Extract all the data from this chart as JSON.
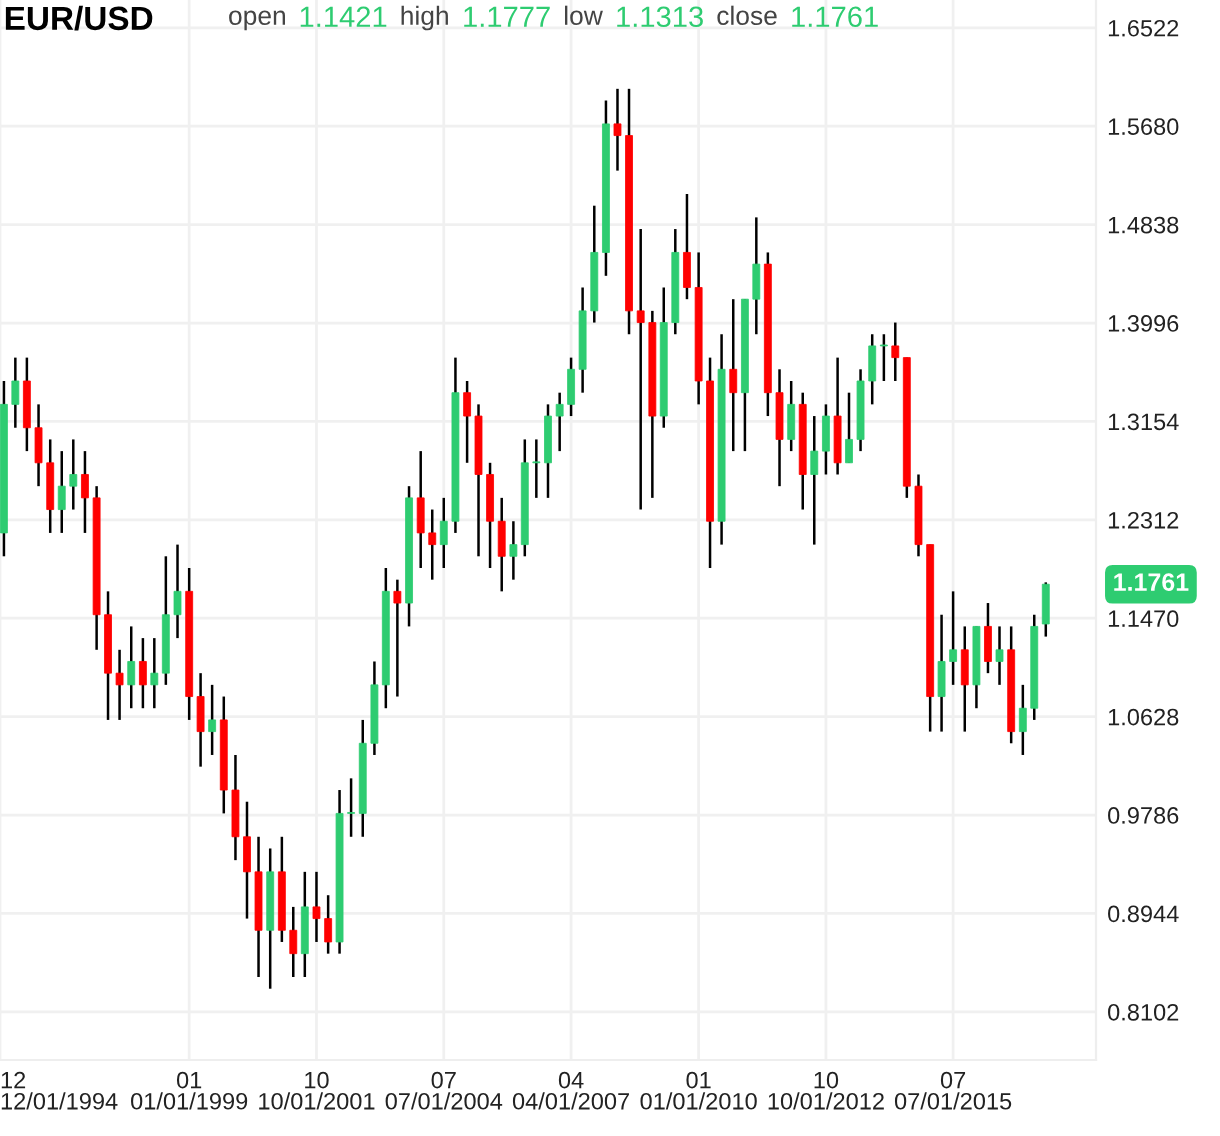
{
  "chart_data": {
    "type": "candlestick",
    "title": "EUR/USD",
    "annotations": [
      "open",
      "1.1421",
      "high",
      "1.1777",
      "low",
      "1.1313",
      "close",
      "1.1761",
      "1.1761"
    ],
    "x": [
      "1995-01",
      "1995-04",
      "1995-07",
      "1995-10",
      "1996-01",
      "1996-04",
      "1996-07",
      "1996-10",
      "1997-01",
      "1997-04",
      "1997-07",
      "1997-10",
      "1998-01",
      "1998-04",
      "1998-07",
      "1998-10",
      "1999-01",
      "1999-04",
      "1999-07",
      "1999-10",
      "2000-01",
      "2000-04",
      "2000-07",
      "2000-10",
      "2001-01",
      "2001-04",
      "2001-07",
      "2001-10",
      "2002-01",
      "2002-04",
      "2002-07",
      "2002-10",
      "2003-01",
      "2003-04",
      "2003-07",
      "2003-10",
      "2004-01",
      "2004-04",
      "2004-07",
      "2004-10",
      "2005-01",
      "2005-04",
      "2005-07",
      "2005-10",
      "2006-01",
      "2006-04",
      "2006-07",
      "2006-10",
      "2007-01",
      "2007-04",
      "2007-07",
      "2007-10",
      "2008-01",
      "2008-04",
      "2008-07",
      "2008-10",
      "2009-01",
      "2009-04",
      "2009-07",
      "2009-10",
      "2010-01",
      "2010-04",
      "2010-07",
      "2010-10",
      "2011-01",
      "2011-04",
      "2011-07",
      "2011-10",
      "2012-01",
      "2012-04",
      "2012-07",
      "2012-10",
      "2013-01",
      "2013-04",
      "2013-07",
      "2013-10",
      "2014-01",
      "2014-04",
      "2014-07",
      "2014-10",
      "2015-01",
      "2015-04",
      "2015-07",
      "2015-10",
      "2016-01",
      "2016-04",
      "2016-07",
      "2016-10",
      "2017-01",
      "2017-04",
      "2017-07"
    ],
    "ohlc": [
      [
        1.22,
        1.35,
        1.2,
        1.33
      ],
      [
        1.33,
        1.37,
        1.31,
        1.35
      ],
      [
        1.35,
        1.37,
        1.29,
        1.31
      ],
      [
        1.31,
        1.33,
        1.26,
        1.28
      ],
      [
        1.28,
        1.3,
        1.22,
        1.24
      ],
      [
        1.24,
        1.29,
        1.22,
        1.26
      ],
      [
        1.26,
        1.3,
        1.24,
        1.27
      ],
      [
        1.27,
        1.29,
        1.22,
        1.25
      ],
      [
        1.25,
        1.26,
        1.12,
        1.15
      ],
      [
        1.15,
        1.17,
        1.06,
        1.1
      ],
      [
        1.1,
        1.12,
        1.06,
        1.09
      ],
      [
        1.09,
        1.14,
        1.07,
        1.11
      ],
      [
        1.11,
        1.13,
        1.07,
        1.09
      ],
      [
        1.09,
        1.13,
        1.07,
        1.1
      ],
      [
        1.1,
        1.2,
        1.09,
        1.15
      ],
      [
        1.15,
        1.21,
        1.13,
        1.17
      ],
      [
        1.17,
        1.19,
        1.06,
        1.08
      ],
      [
        1.08,
        1.1,
        1.02,
        1.05
      ],
      [
        1.05,
        1.09,
        1.03,
        1.06
      ],
      [
        1.06,
        1.08,
        0.98,
        1.0
      ],
      [
        1.0,
        1.03,
        0.94,
        0.96
      ],
      [
        0.96,
        0.99,
        0.89,
        0.93
      ],
      [
        0.93,
        0.96,
        0.84,
        0.88
      ],
      [
        0.88,
        0.95,
        0.83,
        0.93
      ],
      [
        0.93,
        0.96,
        0.87,
        0.88
      ],
      [
        0.88,
        0.9,
        0.84,
        0.86
      ],
      [
        0.86,
        0.93,
        0.84,
        0.9
      ],
      [
        0.9,
        0.93,
        0.87,
        0.89
      ],
      [
        0.89,
        0.91,
        0.86,
        0.87
      ],
      [
        0.87,
        1.0,
        0.86,
        0.98
      ],
      [
        0.98,
        1.01,
        0.96,
        0.98
      ],
      [
        0.98,
        1.06,
        0.96,
        1.04
      ],
      [
        1.04,
        1.11,
        1.03,
        1.09
      ],
      [
        1.09,
        1.19,
        1.07,
        1.17
      ],
      [
        1.17,
        1.18,
        1.08,
        1.16
      ],
      [
        1.16,
        1.26,
        1.14,
        1.25
      ],
      [
        1.25,
        1.29,
        1.19,
        1.22
      ],
      [
        1.22,
        1.24,
        1.18,
        1.21
      ],
      [
        1.21,
        1.25,
        1.19,
        1.23
      ],
      [
        1.23,
        1.37,
        1.22,
        1.34
      ],
      [
        1.34,
        1.35,
        1.28,
        1.32
      ],
      [
        1.32,
        1.33,
        1.2,
        1.27
      ],
      [
        1.27,
        1.28,
        1.19,
        1.23
      ],
      [
        1.23,
        1.25,
        1.17,
        1.2
      ],
      [
        1.2,
        1.23,
        1.18,
        1.21
      ],
      [
        1.21,
        1.3,
        1.2,
        1.28
      ],
      [
        1.28,
        1.3,
        1.25,
        1.28
      ],
      [
        1.28,
        1.33,
        1.25,
        1.32
      ],
      [
        1.32,
        1.34,
        1.29,
        1.33
      ],
      [
        1.33,
        1.37,
        1.32,
        1.36
      ],
      [
        1.36,
        1.43,
        1.34,
        1.41
      ],
      [
        1.41,
        1.5,
        1.4,
        1.46
      ],
      [
        1.46,
        1.59,
        1.44,
        1.57
      ],
      [
        1.57,
        1.6,
        1.53,
        1.56
      ],
      [
        1.56,
        1.6,
        1.39,
        1.41
      ],
      [
        1.41,
        1.48,
        1.24,
        1.4
      ],
      [
        1.4,
        1.41,
        1.25,
        1.32
      ],
      [
        1.32,
        1.43,
        1.31,
        1.4
      ],
      [
        1.4,
        1.48,
        1.39,
        1.46
      ],
      [
        1.46,
        1.51,
        1.42,
        1.43
      ],
      [
        1.43,
        1.46,
        1.33,
        1.35
      ],
      [
        1.35,
        1.37,
        1.19,
        1.23
      ],
      [
        1.23,
        1.39,
        1.21,
        1.36
      ],
      [
        1.36,
        1.42,
        1.29,
        1.34
      ],
      [
        1.34,
        1.42,
        1.29,
        1.42
      ],
      [
        1.42,
        1.49,
        1.39,
        1.45
      ],
      [
        1.45,
        1.46,
        1.32,
        1.34
      ],
      [
        1.34,
        1.36,
        1.26,
        1.3
      ],
      [
        1.3,
        1.35,
        1.29,
        1.33
      ],
      [
        1.33,
        1.34,
        1.24,
        1.27
      ],
      [
        1.27,
        1.32,
        1.21,
        1.29
      ],
      [
        1.29,
        1.33,
        1.27,
        1.32
      ],
      [
        1.32,
        1.37,
        1.27,
        1.28
      ],
      [
        1.28,
        1.34,
        1.28,
        1.3
      ],
      [
        1.3,
        1.36,
        1.29,
        1.35
      ],
      [
        1.35,
        1.39,
        1.33,
        1.38
      ],
      [
        1.38,
        1.39,
        1.35,
        1.38
      ],
      [
        1.38,
        1.4,
        1.35,
        1.37
      ],
      [
        1.37,
        1.37,
        1.25,
        1.26
      ],
      [
        1.26,
        1.27,
        1.2,
        1.21
      ],
      [
        1.21,
        1.21,
        1.05,
        1.08
      ],
      [
        1.08,
        1.15,
        1.05,
        1.11
      ],
      [
        1.11,
        1.17,
        1.09,
        1.12
      ],
      [
        1.12,
        1.14,
        1.05,
        1.09
      ],
      [
        1.09,
        1.14,
        1.07,
        1.14
      ],
      [
        1.14,
        1.16,
        1.1,
        1.11
      ],
      [
        1.11,
        1.14,
        1.09,
        1.12
      ],
      [
        1.12,
        1.14,
        1.04,
        1.05
      ],
      [
        1.05,
        1.09,
        1.03,
        1.07
      ],
      [
        1.07,
        1.15,
        1.06,
        1.14
      ],
      [
        1.1421,
        1.1777,
        1.1313,
        1.1761
      ]
    ],
    "colors": [
      "#2ecc71",
      "#2ecc71",
      "#ff0000",
      "#ff0000",
      "#ff0000",
      "#2ecc71",
      "#2ecc71",
      "#ff0000",
      "#ff0000",
      "#ff0000",
      "#ff0000",
      "#2ecc71",
      "#ff0000",
      "#2ecc71",
      "#2ecc71",
      "#2ecc71",
      "#ff0000",
      "#ff0000",
      "#2ecc71",
      "#ff0000",
      "#ff0000",
      "#ff0000",
      "#ff0000",
      "#2ecc71",
      "#ff0000",
      "#ff0000",
      "#2ecc71",
      "#ff0000",
      "#ff0000",
      "#2ecc71",
      "#2ecc71",
      "#2ecc71",
      "#2ecc71",
      "#2ecc71",
      "#ff0000",
      "#2ecc71",
      "#ff0000",
      "#ff0000",
      "#2ecc71",
      "#2ecc71",
      "#ff0000",
      "#ff0000",
      "#ff0000",
      "#ff0000",
      "#2ecc71",
      "#2ecc71",
      "#2ecc71",
      "#2ecc71",
      "#2ecc71",
      "#2ecc71",
      "#2ecc71",
      "#2ecc71",
      "#2ecc71",
      "#ff0000",
      "#ff0000",
      "#ff0000",
      "#ff0000",
      "#2ecc71",
      "#2ecc71",
      "#ff0000",
      "#ff0000",
      "#ff0000",
      "#2ecc71",
      "#ff0000",
      "#2ecc71",
      "#2ecc71",
      "#ff0000",
      "#ff0000",
      "#2ecc71",
      "#ff0000",
      "#2ecc71",
      "#2ecc71",
      "#ff0000",
      "#2ecc71",
      "#2ecc71",
      "#2ecc71",
      "#2ecc71",
      "#ff0000",
      "#ff0000",
      "#ff0000",
      "#ff0000",
      "#2ecc71",
      "#2ecc71",
      "#ff0000",
      "#2ecc71",
      "#ff0000",
      "#2ecc71",
      "#ff0000",
      "#2ecc71",
      "#2ecc71",
      "#2ecc71"
    ],
    "xlim": [
      "1994-12",
      "2018-08"
    ],
    "xticks": [
      {
        "value": "1994-12",
        "label": "12\n12/01/1994"
      },
      {
        "value": "1999-01",
        "label": "01\n01/01/1999"
      },
      {
        "value": "2001-10",
        "label": "10\n10/01/2001"
      },
      {
        "value": "2004-07",
        "label": "07\n07/01/2004"
      },
      {
        "value": "2007-04",
        "label": "04\n04/01/2007"
      },
      {
        "value": "2010-01",
        "label": "01\n01/01/2010"
      },
      {
        "value": "2012-10",
        "label": "10\n10/01/2012"
      },
      {
        "value": "2015-07",
        "label": "07\n07/01/2015"
      }
    ],
    "ylim": [
      0.769,
      1.676
    ],
    "yticks": [
      {
        "value": 0.8102,
        "label": "0.8102"
      },
      {
        "value": 0.8944,
        "label": "0.8944"
      },
      {
        "value": 0.9786,
        "label": "0.9786"
      },
      {
        "value": 1.0628,
        "label": "1.0628"
      },
      {
        "value": 1.147,
        "label": "1.1470"
      },
      {
        "value": 1.2312,
        "label": "1.2312"
      },
      {
        "value": 1.3154,
        "label": "1.3154"
      },
      {
        "value": 1.3996,
        "label": "1.3996"
      },
      {
        "value": 1.4838,
        "label": "1.4838"
      },
      {
        "value": 1.568,
        "label": "1.5680"
      },
      {
        "value": 1.6522,
        "label": "1.6522"
      }
    ],
    "grid": true
  }
}
